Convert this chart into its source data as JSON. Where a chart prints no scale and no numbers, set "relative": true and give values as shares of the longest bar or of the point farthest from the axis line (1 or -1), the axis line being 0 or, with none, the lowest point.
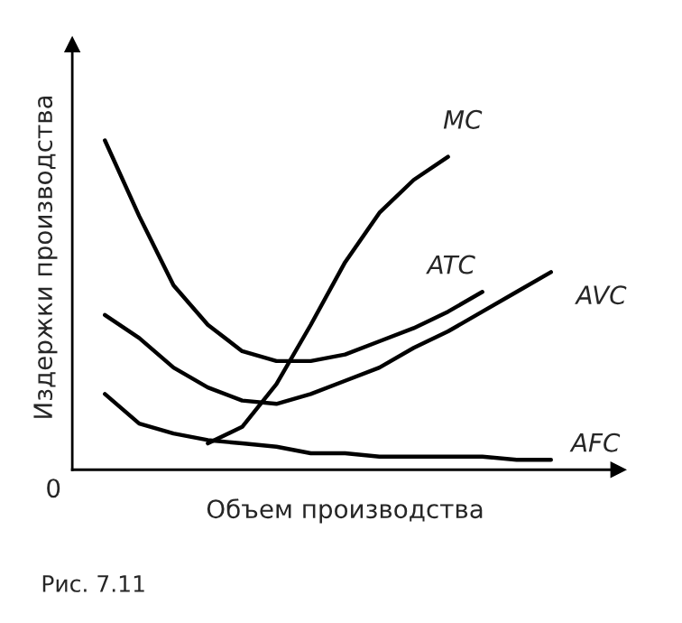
{
  "chart_data": {
    "type": "line",
    "relative": true,
    "xlabel": "Объем производства",
    "ylabel": "Издержки производства",
    "categories": [
      null,
      null,
      null,
      null,
      null,
      null,
      null,
      null,
      null,
      null,
      null,
      null,
      null,
      null
    ],
    "series": [
      {
        "name": "MC",
        "color": "#000000",
        "values": [
          null,
          null,
          null,
          0.08,
          0.13,
          0.26,
          0.44,
          0.63,
          0.78,
          0.88,
          0.95,
          null,
          null,
          null
        ]
      },
      {
        "name": "ATC",
        "color": "#000000",
        "values": [
          1.0,
          0.77,
          0.56,
          0.44,
          0.36,
          0.33,
          0.33,
          0.35,
          0.39,
          0.43,
          0.48,
          0.54,
          null,
          null
        ]
      },
      {
        "name": "AVC",
        "color": "#000000",
        "values": [
          0.47,
          0.4,
          0.31,
          0.25,
          0.21,
          0.2,
          0.23,
          0.27,
          0.31,
          0.37,
          0.42,
          0.48,
          0.54,
          0.6
        ]
      },
      {
        "name": "AFC",
        "color": "#000000",
        "values": [
          0.23,
          0.14,
          0.11,
          0.09,
          0.08,
          0.07,
          0.05,
          0.05,
          0.04,
          0.04,
          0.04,
          0.04,
          0.03,
          0.03
        ]
      }
    ],
    "annotations": [
      "0",
      "Рис. 7.11"
    ],
    "grid": false,
    "legend": false,
    "marker": "none",
    "line_style": "solid"
  }
}
